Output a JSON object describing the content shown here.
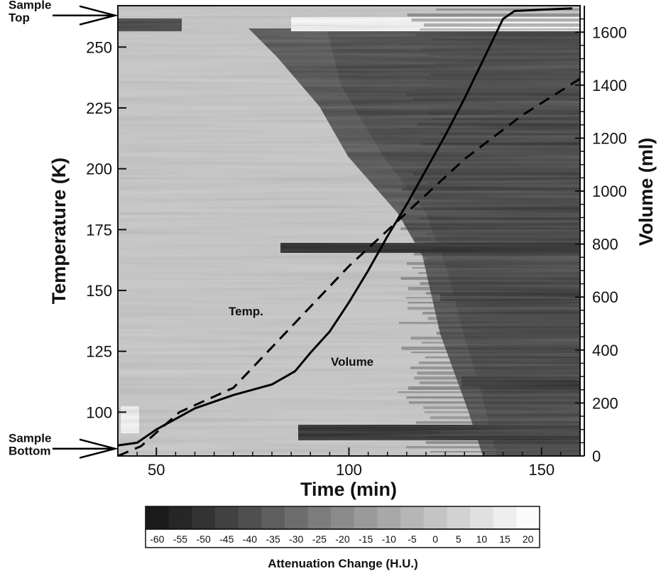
{
  "chart_data": {
    "type": "heatmap",
    "x_axis": {
      "label": "Time (min)",
      "range": [
        40,
        160
      ],
      "ticks": [
        50,
        100,
        150
      ]
    },
    "y_left": {
      "label": "Temperature (K)",
      "range": [
        82,
        267
      ],
      "ticks": [
        100,
        125,
        150,
        175,
        200,
        225,
        250
      ]
    },
    "y_right": {
      "label": "Volume (ml)",
      "range": [
        0,
        1700
      ],
      "ticks": [
        0,
        200,
        400,
        600,
        800,
        1000,
        1200,
        1400,
        1600
      ]
    },
    "markers": [
      {
        "label": [
          "Sample",
          "Top"
        ],
        "y_temperature": 263
      },
      {
        "label": [
          "Sample",
          "Bottom"
        ],
        "y_temperature": 85
      }
    ],
    "annotations": [
      "Temp.",
      "Volume"
    ],
    "series": [
      {
        "name": "Temp.",
        "style": "dashed",
        "axis": "left",
        "points": [
          [
            40,
            82
          ],
          [
            46,
            86
          ],
          [
            56,
            100
          ],
          [
            70,
            110
          ],
          [
            85,
            135
          ],
          [
            100,
            160
          ],
          [
            115,
            182
          ],
          [
            130,
            204
          ],
          [
            145,
            222
          ],
          [
            160,
            237
          ]
        ]
      },
      {
        "name": "Volume",
        "style": "solid",
        "axis": "right",
        "points": [
          [
            40,
            40
          ],
          [
            45,
            50
          ],
          [
            50,
            100
          ],
          [
            60,
            180
          ],
          [
            70,
            230
          ],
          [
            80,
            270
          ],
          [
            86,
            320
          ],
          [
            90,
            390
          ],
          [
            95,
            470
          ],
          [
            100,
            580
          ],
          [
            105,
            700
          ],
          [
            110,
            830
          ],
          [
            115,
            950
          ],
          [
            120,
            1080
          ],
          [
            125,
            1210
          ],
          [
            130,
            1350
          ],
          [
            135,
            1500
          ],
          [
            140,
            1650
          ],
          [
            143,
            1680
          ],
          [
            150,
            1685
          ],
          [
            158,
            1690
          ]
        ]
      }
    ],
    "colorbar": {
      "title": "Attenuation Change (H.U.)",
      "ticks": [
        "-60",
        "-55",
        "-50",
        "-45",
        "-40",
        "-35",
        "-30",
        "-25",
        "-20",
        "-15",
        "-10",
        "-5",
        "0",
        "5",
        "10",
        "15",
        "20"
      ],
      "colors": [
        "#1a1a1a",
        "#262626",
        "#333333",
        "#414141",
        "#4f4f4f",
        "#5e5e5e",
        "#6d6d6d",
        "#7c7c7c",
        "#8b8b8b",
        "#9a9a9a",
        "#a8a8a8",
        "#b6b6b6",
        "#c4c4c4",
        "#d2d2d2",
        "#e0e0e0",
        "#eeeeee",
        "#fbfbfb"
      ]
    },
    "grid": false,
    "legend": "none"
  }
}
